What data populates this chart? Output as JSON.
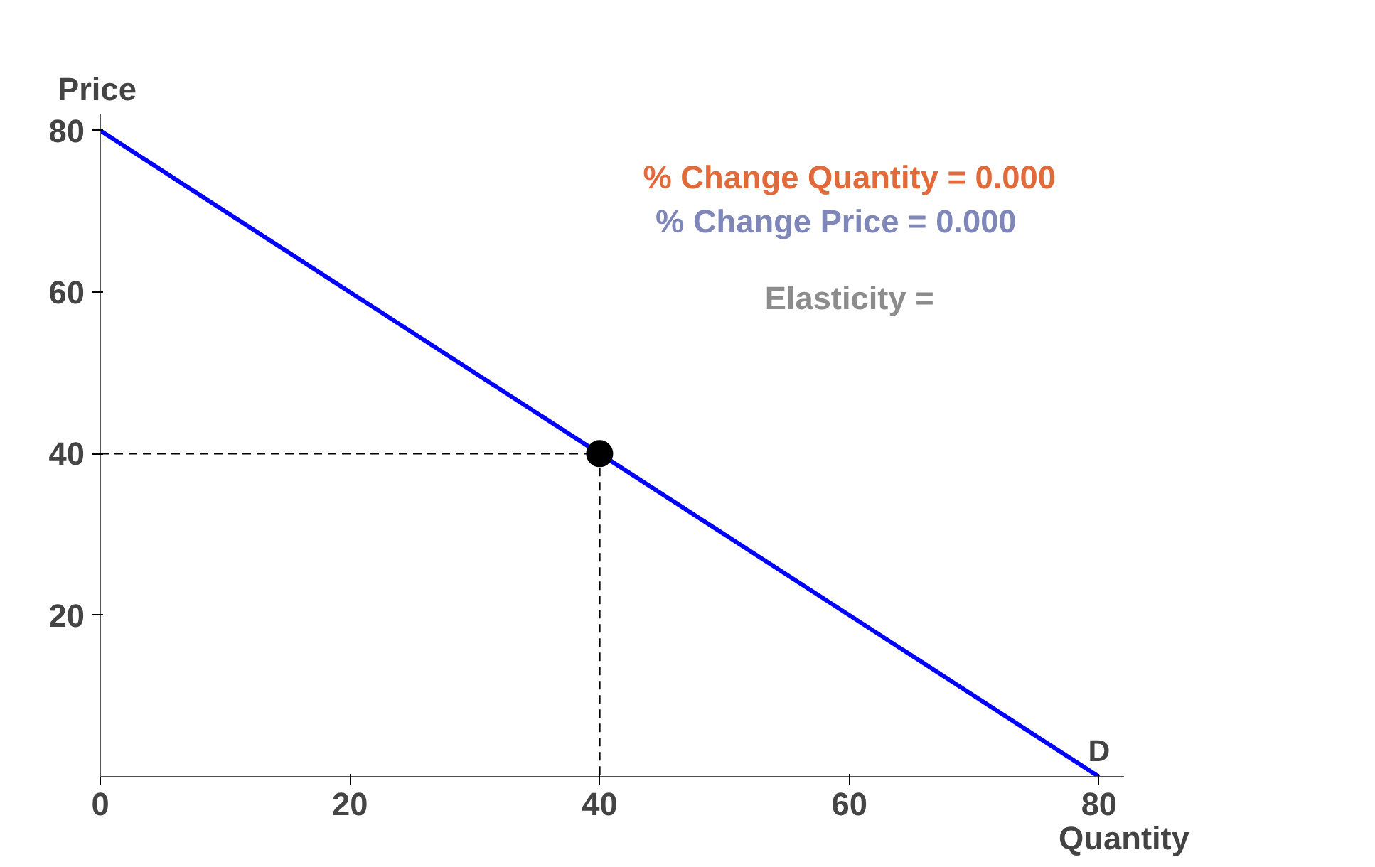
{
  "chart_data": {
    "type": "line",
    "xlabel": "Quantity",
    "ylabel": "Price",
    "xlim": [
      0,
      82
    ],
    "ylim": [
      0,
      82
    ],
    "xticks": [
      0,
      20,
      40,
      60,
      80
    ],
    "yticks": [
      20,
      40,
      60,
      80
    ],
    "grid": false,
    "series": [
      {
        "x": [
          0,
          80
        ],
        "values": [
          80,
          0
        ],
        "color": "#0000ff",
        "line_style": "solid",
        "marker": "none"
      },
      {
        "x": [
          0,
          40
        ],
        "values": [
          40,
          40
        ],
        "color": "#000000",
        "line_style": "dashed",
        "marker": "none"
      },
      {
        "x": [
          40,
          40
        ],
        "values": [
          40,
          0
        ],
        "color": "#000000",
        "line_style": "dashed",
        "marker": "none"
      },
      {
        "type": "scatter",
        "x": [
          40
        ],
        "values": [
          40
        ],
        "color": "#000000",
        "marker": "circle"
      }
    ],
    "annotations": [
      "% Change Quantity = 0.000",
      "% Change Price =    0.000",
      "Elasticity =",
      {
        "text": "D",
        "x": 80,
        "y": 0
      }
    ]
  }
}
